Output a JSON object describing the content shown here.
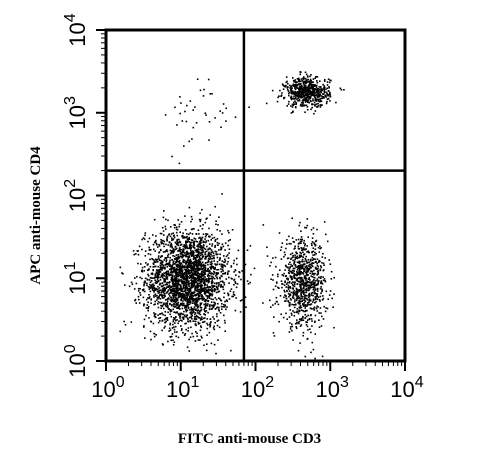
{
  "chart_data": {
    "type": "scatter",
    "xlabel": "FITC anti-mouse CD3",
    "ylabel": "APC anti-mouse CD4",
    "xscale": "log",
    "yscale": "log",
    "xlim": [
      1,
      10000
    ],
    "ylim": [
      1,
      10000
    ],
    "x_ticks": [
      {
        "value": 1,
        "base": "10",
        "exp": "0"
      },
      {
        "value": 10,
        "base": "10",
        "exp": "1"
      },
      {
        "value": 100,
        "base": "10",
        "exp": "2"
      },
      {
        "value": 1000,
        "base": "10",
        "exp": "3"
      },
      {
        "value": 10000,
        "base": "10",
        "exp": "4"
      }
    ],
    "y_ticks": [
      {
        "value": 1,
        "base": "10",
        "exp": "0"
      },
      {
        "value": 10,
        "base": "10",
        "exp": "1"
      },
      {
        "value": 100,
        "base": "10",
        "exp": "2"
      },
      {
        "value": 1000,
        "base": "10",
        "exp": "3"
      },
      {
        "value": 10000,
        "base": "10",
        "exp": "4"
      }
    ],
    "quadrant_gates": {
      "x": 70,
      "y": 200
    },
    "populations": [
      {
        "center": [
          12,
          10
        ],
        "spread": [
          0.28,
          0.3
        ],
        "approx_events": 2600
      },
      {
        "center": [
          420,
          9
        ],
        "spread": [
          0.16,
          0.26
        ],
        "approx_events": 900
      },
      {
        "center": [
          480,
          1800
        ],
        "spread": [
          0.15,
          0.09
        ],
        "approx_events": 600
      },
      {
        "center": [
          20,
          900
        ],
        "spread": [
          0.25,
          0.25
        ],
        "approx_events": 40
      }
    ],
    "grid": false,
    "legend": "none"
  }
}
